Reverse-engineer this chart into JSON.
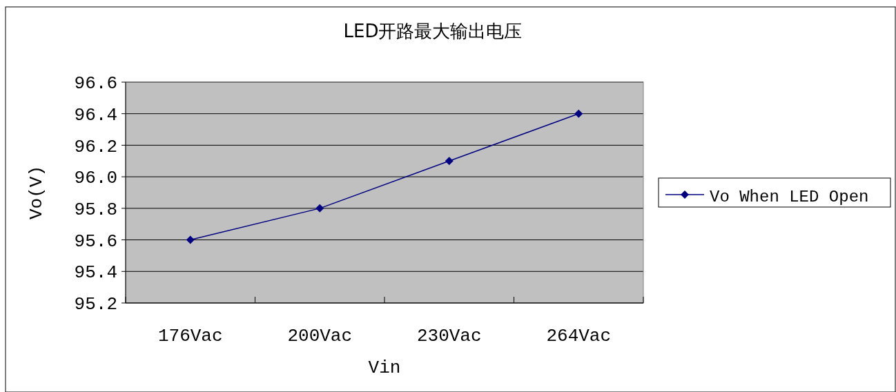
{
  "chart_data": {
    "type": "line",
    "title": "LED开路最大输出电压",
    "xlabel": "Vin",
    "ylabel": "Vo(V)",
    "categories": [
      "176Vac",
      "200Vac",
      "230Vac",
      "264Vac"
    ],
    "series": [
      {
        "name": "Vo When LED Open",
        "color": "#000080",
        "values": [
          95.6,
          95.8,
          96.1,
          96.4
        ]
      }
    ],
    "ylim": [
      95.2,
      96.6
    ],
    "yticks": [
      {
        "value": 95.2,
        "label": "95.2"
      },
      {
        "value": 95.4,
        "label": "95.4"
      },
      {
        "value": 95.6,
        "label": "95.6"
      },
      {
        "value": 95.8,
        "label": "95.8"
      },
      {
        "value": 96.0,
        "label": "96.0"
      },
      {
        "value": 96.2,
        "label": "96.2"
      },
      {
        "value": 96.4,
        "label": "96.4"
      },
      {
        "value": 96.6,
        "label": "96.6"
      }
    ],
    "grid": "y",
    "legend": "right",
    "marker": "diamond",
    "line_style": "solid"
  }
}
